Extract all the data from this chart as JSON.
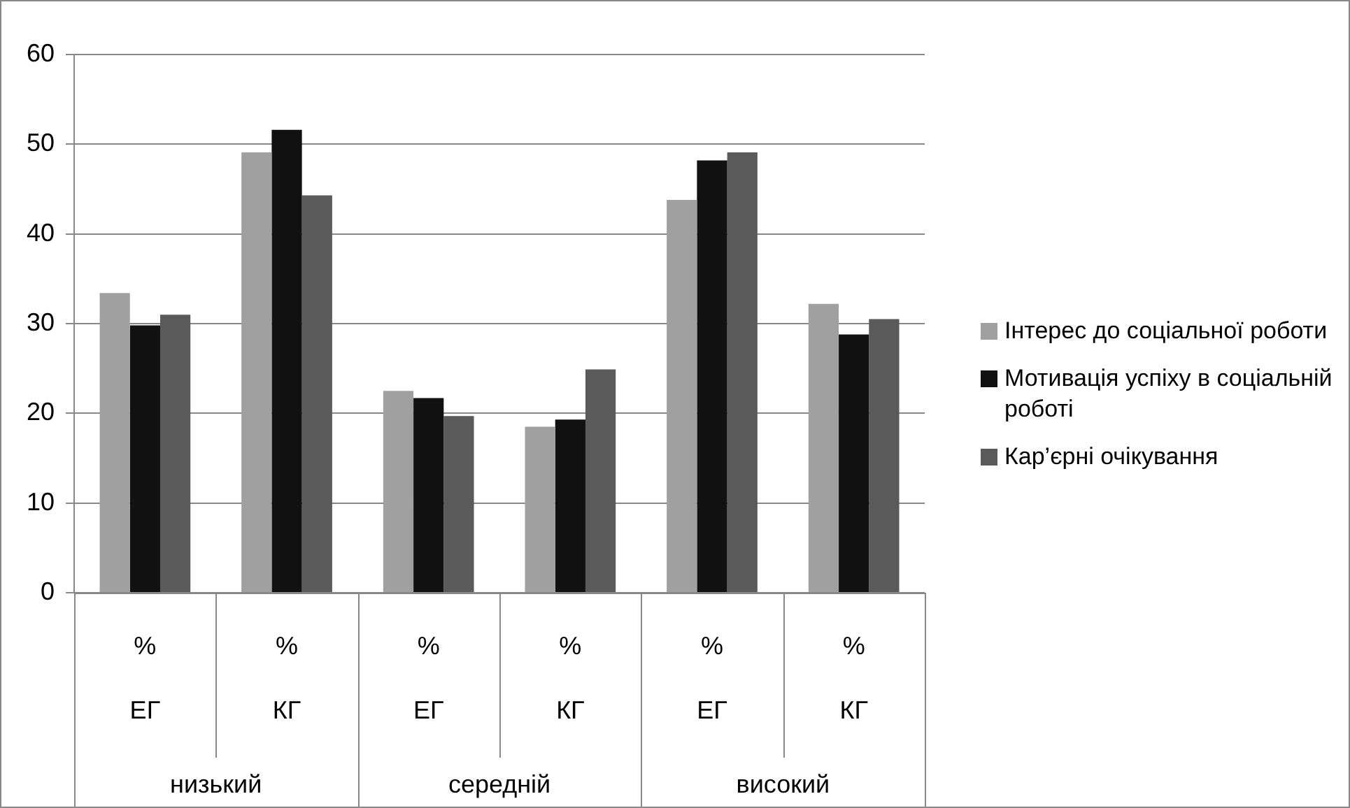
{
  "chart_data": {
    "type": "bar",
    "categories": [
      "%\nЕГ",
      "%\nКГ",
      "%\nЕГ",
      "%\nКГ",
      "%\nЕГ",
      "%\nКГ"
    ],
    "annotations": [
      "низький",
      "середній",
      "високий"
    ],
    "series": [
      {
        "name": "Інтерес до соціальної роботи",
        "color": "#a0a0a0",
        "values": [
          33.4,
          49.1,
          22.5,
          18.5,
          43.8,
          32.2
        ]
      },
      {
        "name": "Мотивація успіху в соціальній роботі",
        "color": "#111111",
        "values": [
          29.8,
          51.6,
          21.7,
          19.3,
          48.2,
          28.8
        ]
      },
      {
        "name": "Кар’єрні очікування",
        "color": "#5a5a5a",
        "values": [
          31.0,
          44.3,
          19.7,
          24.9,
          49.1,
          30.5
        ]
      }
    ],
    "ylim": [
      0,
      60
    ],
    "yticks": [
      0,
      10,
      20,
      30,
      40,
      50,
      60
    ],
    "grid": "y",
    "legend": "right"
  }
}
